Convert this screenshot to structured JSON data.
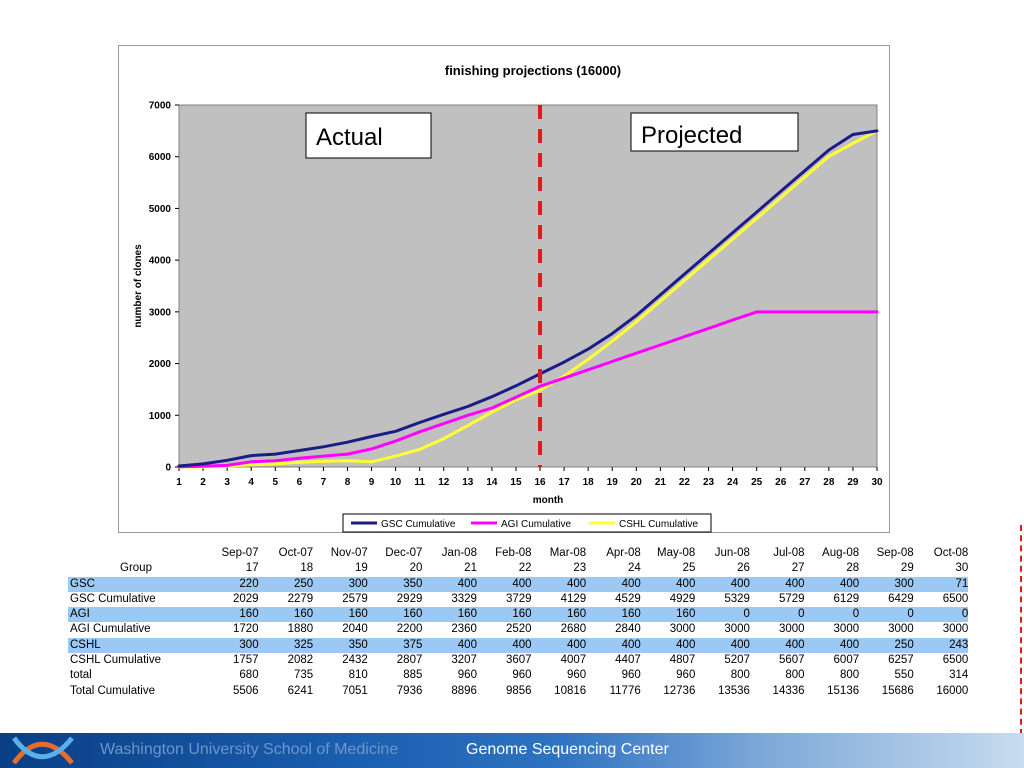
{
  "chart_data": {
    "type": "line",
    "title": "finishing projections (16000)",
    "xlabel": "month",
    "ylabel": "number of clones",
    "xlim": [
      1,
      30
    ],
    "ylim": [
      0,
      7000
    ],
    "yticks": [
      0,
      1000,
      2000,
      3000,
      4000,
      5000,
      6000,
      7000
    ],
    "x": [
      1,
      2,
      3,
      4,
      5,
      6,
      7,
      8,
      9,
      10,
      11,
      12,
      13,
      14,
      15,
      16,
      17,
      18,
      19,
      20,
      21,
      22,
      23,
      24,
      25,
      26,
      27,
      28,
      29,
      30
    ],
    "series": [
      {
        "name": "GSC Cumulative",
        "color": "#1c1c86",
        "values": [
          20,
          60,
          130,
          220,
          250,
          320,
          390,
          480,
          590,
          690,
          860,
          1020,
          1170,
          1360,
          1570,
          1800,
          2029,
          2279,
          2579,
          2929,
          3329,
          3729,
          4129,
          4529,
          4929,
          5329,
          5729,
          6129,
          6429,
          6500
        ]
      },
      {
        "name": "AGI Cumulative",
        "color": "#ff00ff",
        "values": [
          5,
          15,
          30,
          100,
          120,
          170,
          210,
          250,
          350,
          500,
          680,
          840,
          1000,
          1140,
          1350,
          1560,
          1720,
          1880,
          2040,
          2200,
          2360,
          2520,
          2680,
          2840,
          3000,
          3000,
          3000,
          3000,
          3000,
          3000
        ]
      },
      {
        "name": "CSHL Cumulative",
        "color": "#ffff33",
        "values": [
          0,
          0,
          20,
          40,
          60,
          90,
          110,
          120,
          100,
          210,
          340,
          550,
          800,
          1060,
          1300,
          1480,
          1757,
          2082,
          2432,
          2807,
          3207,
          3607,
          4007,
          4407,
          4807,
          5207,
          5607,
          6007,
          6257,
          6500
        ]
      }
    ],
    "divider_x": 16,
    "legend_position": "bottom",
    "annotations": [
      "Actual",
      "Projected"
    ],
    "grid": false
  },
  "table": {
    "months": [
      "Sep-07",
      "Oct-07",
      "Nov-07",
      "Dec-07",
      "Jan-08",
      "Feb-08",
      "Mar-08",
      "Apr-08",
      "May-08",
      "Jun-08",
      "Jul-08",
      "Aug-08",
      "Sep-08",
      "Oct-08"
    ],
    "group_label": "Group",
    "month_numbers": [
      "17",
      "18",
      "19",
      "20",
      "21",
      "22",
      "23",
      "24",
      "25",
      "26",
      "27",
      "28",
      "29",
      "30"
    ],
    "rows": [
      {
        "label": "GSC",
        "highlight": true,
        "values": [
          "220",
          "250",
          "300",
          "350",
          "400",
          "400",
          "400",
          "400",
          "400",
          "400",
          "400",
          "400",
          "300",
          "71"
        ]
      },
      {
        "label": "GSC Cumulative",
        "highlight": false,
        "values": [
          "2029",
          "2279",
          "2579",
          "2929",
          "3329",
          "3729",
          "4129",
          "4529",
          "4929",
          "5329",
          "5729",
          "6129",
          "6429",
          "6500"
        ]
      },
      {
        "label": "AGI",
        "highlight": true,
        "values": [
          "160",
          "160",
          "160",
          "160",
          "160",
          "160",
          "160",
          "160",
          "160",
          "0",
          "0",
          "0",
          "0",
          "0"
        ]
      },
      {
        "label": "AGI Cumulative",
        "highlight": false,
        "values": [
          "1720",
          "1880",
          "2040",
          "2200",
          "2360",
          "2520",
          "2680",
          "2840",
          "3000",
          "3000",
          "3000",
          "3000",
          "3000",
          "3000"
        ]
      },
      {
        "label": "CSHL",
        "highlight": true,
        "values": [
          "300",
          "325",
          "350",
          "375",
          "400",
          "400",
          "400",
          "400",
          "400",
          "400",
          "400",
          "400",
          "250",
          "243"
        ]
      },
      {
        "label": "CSHL Cumulative",
        "highlight": false,
        "values": [
          "1757",
          "2082",
          "2432",
          "2807",
          "3207",
          "3607",
          "4007",
          "4407",
          "4807",
          "5207",
          "5607",
          "6007",
          "6257",
          "6500"
        ]
      },
      {
        "label": "total",
        "highlight": false,
        "values": [
          "680",
          "735",
          "810",
          "885",
          "960",
          "960",
          "960",
          "960",
          "960",
          "800",
          "800",
          "800",
          "550",
          "314"
        ]
      },
      {
        "label": "Total Cumulative",
        "highlight": false,
        "values": [
          "5506",
          "6241",
          "7051",
          "7936",
          "8896",
          "9856",
          "10816",
          "11776",
          "12736",
          "13536",
          "14336",
          "15136",
          "15686",
          "16000"
        ]
      }
    ]
  },
  "footer": {
    "left_text": "Washington University School of Medicine",
    "right_text": "Genome Sequencing Center"
  },
  "colors": {
    "plot_bg": "#c0c0c0",
    "divider": "#e0191e",
    "highlight_row": "#9cc9f3"
  }
}
